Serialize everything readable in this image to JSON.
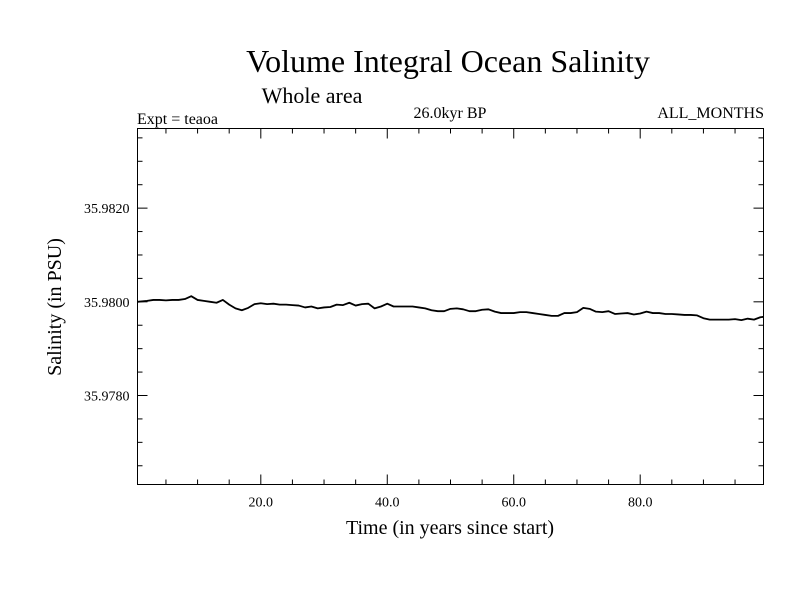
{
  "chart_data": {
    "type": "line",
    "title": "Volume Integral Ocean Salinity",
    "subtitle": "Whole area",
    "annotations": {
      "experiment": "Expt = teaoa",
      "period": "26.0kyr BP",
      "months": "ALL_MONTHS"
    },
    "xlabel": "Time (in years since start)",
    "ylabel": "Salinity (in PSU)",
    "xlim": [
      0.5,
      99.5
    ],
    "ylim": [
      35.9761,
      35.9837
    ],
    "x_ticks": [
      20,
      40,
      60,
      80
    ],
    "x_tick_labels": [
      "20.0",
      "40.0",
      "60.0",
      "80.0"
    ],
    "y_ticks": [
      35.978,
      35.98,
      35.982
    ],
    "y_tick_labels": [
      "35.9780",
      "35.9800",
      "35.9820"
    ],
    "x_minor_step": 5,
    "y_minor_step": 0.0005,
    "grid": false,
    "series": [
      {
        "name": "Volume integral ocean salinity",
        "color": "#000000",
        "x": [
          0.5,
          2,
          3,
          4,
          5,
          6,
          7,
          8,
          9,
          10,
          11,
          12,
          13,
          14,
          15,
          16,
          17,
          18,
          19,
          20,
          21,
          22,
          23,
          24,
          25,
          26,
          27,
          28,
          29,
          30,
          31,
          32,
          33,
          34,
          35,
          36,
          37,
          38,
          39,
          40,
          41,
          42,
          43,
          44,
          45,
          46,
          47,
          48,
          49,
          50,
          51,
          52,
          53,
          54,
          55,
          56,
          57,
          58,
          59,
          60,
          61,
          62,
          63,
          64,
          65,
          66,
          67,
          68,
          69,
          70,
          71,
          72,
          73,
          74,
          75,
          76,
          77,
          78,
          79,
          80,
          81,
          82,
          83,
          84,
          85,
          86,
          87,
          88,
          89,
          90,
          91,
          92,
          93,
          94,
          95,
          96,
          97,
          98,
          99,
          99.5
        ],
        "values": [
          35.98,
          35.98002,
          35.98004,
          35.98004,
          35.98003,
          35.98004,
          35.98004,
          35.98006,
          35.98012,
          35.98004,
          35.98002,
          35.98,
          35.97998,
          35.98004,
          35.97994,
          35.97986,
          35.97982,
          35.97987,
          35.97995,
          35.97997,
          35.97995,
          35.97996,
          35.97994,
          35.97994,
          35.97993,
          35.97992,
          35.97988,
          35.9799,
          35.97986,
          35.97988,
          35.97989,
          35.97994,
          35.97993,
          35.97998,
          35.97992,
          35.97995,
          35.97996,
          35.97986,
          35.9799,
          35.97996,
          35.9799,
          35.9799,
          35.9799,
          35.9799,
          35.97988,
          35.97986,
          35.97982,
          35.9798,
          35.9798,
          35.97985,
          35.97986,
          35.97984,
          35.9798,
          35.9798,
          35.97983,
          35.97984,
          35.97979,
          35.97976,
          35.97976,
          35.97976,
          35.97978,
          35.97978,
          35.97976,
          35.97974,
          35.97972,
          35.9797,
          35.9797,
          35.97976,
          35.97976,
          35.97978,
          35.97987,
          35.97985,
          35.97979,
          35.97978,
          35.9798,
          35.97974,
          35.97975,
          35.97976,
          35.97973,
          35.97975,
          35.97979,
          35.97976,
          35.97976,
          35.97974,
          35.97974,
          35.97973,
          35.97972,
          35.97972,
          35.97971,
          35.97965,
          35.97962,
          35.97962,
          35.97962,
          35.97962,
          35.97963,
          35.97961,
          35.97964,
          35.97962,
          35.97967,
          35.97968
        ]
      }
    ]
  }
}
